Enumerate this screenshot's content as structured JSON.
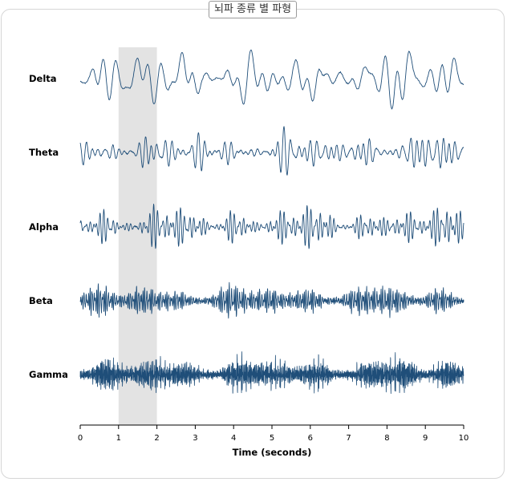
{
  "chart_data": {
    "type": "line",
    "title": "뇌파 종류 별 파형",
    "xlabel": "Time (seconds)",
    "ylabel": "",
    "xlim": [
      0,
      10
    ],
    "x_ticks": [
      "0",
      "1",
      "2",
      "3",
      "4",
      "5",
      "6",
      "7",
      "8",
      "9",
      "10"
    ],
    "highlight_range": [
      1,
      2
    ],
    "grid": false,
    "series": [
      {
        "name": "Delta",
        "amplitude": 1.0,
        "frequencies": [
          1.0,
          1.7,
          2.6,
          3.4
        ],
        "density": "low"
      },
      {
        "name": "Theta",
        "amplitude": 0.85,
        "frequencies": [
          4.5,
          5.8,
          7.2
        ],
        "density": "medium"
      },
      {
        "name": "Alpha",
        "amplitude": 0.75,
        "frequencies": [
          8.5,
          10.0,
          11.5
        ],
        "density": "medium"
      },
      {
        "name": "Beta",
        "amplitude": 0.6,
        "frequencies": [
          14,
          19,
          24,
          29
        ],
        "density": "high"
      },
      {
        "name": "Gamma",
        "amplitude": 0.75,
        "frequencies": [
          32,
          40,
          48,
          57,
          66
        ],
        "density": "very-high"
      }
    ],
    "colors": {
      "line": "#1f4e79",
      "highlight": "#e3e3e3",
      "axis": "#000000"
    }
  }
}
